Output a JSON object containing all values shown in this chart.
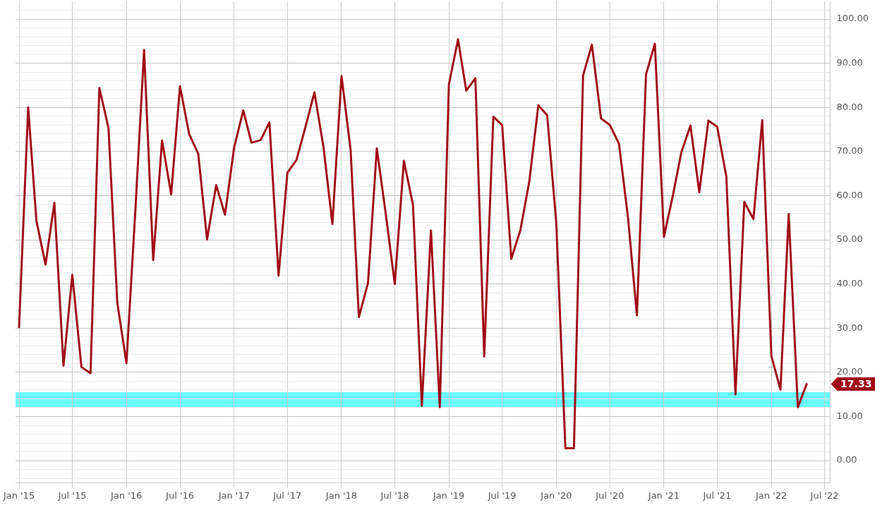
{
  "chart_data": {
    "type": "line",
    "x": [
      "2015-01",
      "2015-02",
      "2015-03",
      "2015-04",
      "2015-05",
      "2015-06",
      "2015-07",
      "2015-08",
      "2015-09",
      "2015-10",
      "2015-11",
      "2015-12",
      "2016-01",
      "2016-02",
      "2016-03",
      "2016-04",
      "2016-05",
      "2016-06",
      "2016-07",
      "2016-08",
      "2016-09",
      "2016-10",
      "2016-11",
      "2016-12",
      "2017-01",
      "2017-02",
      "2017-03",
      "2017-04",
      "2017-05",
      "2017-06",
      "2017-07",
      "2017-08",
      "2017-09",
      "2017-10",
      "2017-11",
      "2017-12",
      "2018-01",
      "2018-02",
      "2018-03",
      "2018-04",
      "2018-05",
      "2018-06",
      "2018-07",
      "2018-08",
      "2018-09",
      "2018-10",
      "2018-11",
      "2018-12",
      "2019-01",
      "2019-02",
      "2019-03",
      "2019-04",
      "2019-05",
      "2019-06",
      "2019-07",
      "2019-08",
      "2019-09",
      "2019-10",
      "2019-11",
      "2019-12",
      "2020-01",
      "2020-02",
      "2020-03",
      "2020-04",
      "2020-05",
      "2020-06",
      "2020-07",
      "2020-08",
      "2020-09",
      "2020-10",
      "2020-11",
      "2020-12",
      "2021-01",
      "2021-02",
      "2021-03",
      "2021-04",
      "2021-05",
      "2021-06",
      "2021-07",
      "2021-08",
      "2021-09",
      "2021-10",
      "2021-11",
      "2021-12",
      "2022-01",
      "2022-02",
      "2022-03",
      "2022-04",
      "2022-05"
    ],
    "series": [
      {
        "color": "#a00d18",
        "values": [
          30.2,
          80.0,
          54.3,
          44.4,
          58.4,
          21.5,
          42.1,
          21.2,
          19.8,
          84.4,
          75.3,
          35.7,
          22.1,
          57.5,
          93.0,
          45.4,
          72.5,
          60.3,
          84.8,
          74.0,
          69.5,
          50.1,
          62.4,
          55.7,
          70.9,
          79.3,
          72.0,
          72.6,
          76.6,
          41.9,
          65.2,
          68.1,
          75.7,
          83.4,
          70.9,
          53.6,
          87.1,
          70.3,
          32.5,
          40.2,
          70.7,
          55.6,
          40.0,
          67.9,
          57.9,
          12.4,
          52.1,
          12.1,
          85.2,
          95.4,
          83.8,
          86.6,
          23.6,
          77.9,
          76.0,
          45.7,
          52.2,
          63.1,
          80.5,
          78.2,
          53.8,
          2.8,
          2.8,
          87.2,
          94.2,
          77.5,
          76.0,
          71.8,
          54.9,
          32.9,
          87.5,
          94.4,
          50.7,
          60.3,
          69.8,
          75.9,
          60.8,
          77.0,
          75.6,
          64.3,
          15.0,
          58.6,
          54.7,
          77.1,
          23.7,
          16.1,
          55.9,
          12.1,
          17.33
        ]
      }
    ],
    "xlim": [
      "2014-12-20",
      "2022-07-20"
    ],
    "xticks": [
      {
        "value": "2015-01",
        "label": "Jan '15"
      },
      {
        "value": "2015-07",
        "label": "Jul '15"
      },
      {
        "value": "2016-01",
        "label": "Jan '16"
      },
      {
        "value": "2016-07",
        "label": "Jul '16"
      },
      {
        "value": "2017-01",
        "label": "Jan '17"
      },
      {
        "value": "2017-07",
        "label": "Jul '17"
      },
      {
        "value": "2018-01",
        "label": "Jan '18"
      },
      {
        "value": "2018-07",
        "label": "Jul '18"
      },
      {
        "value": "2019-01",
        "label": "Jan '19"
      },
      {
        "value": "2019-07",
        "label": "Jul '19"
      },
      {
        "value": "2020-01",
        "label": "Jan '20"
      },
      {
        "value": "2020-07",
        "label": "Jul '20"
      },
      {
        "value": "2021-01",
        "label": "Jan '21"
      },
      {
        "value": "2021-07",
        "label": "Jul '21"
      },
      {
        "value": "2022-01",
        "label": "Jan '22"
      },
      {
        "value": "2022-07",
        "label": "Jul '22"
      }
    ],
    "ylim": [
      -5,
      104
    ],
    "yticks": [
      {
        "value": -4,
        "label": null
      },
      {
        "value": -2,
        "label": null
      },
      {
        "value": 0,
        "label": "0.00"
      },
      {
        "value": 2,
        "label": null
      },
      {
        "value": 4,
        "label": null
      },
      {
        "value": 6,
        "label": null
      },
      {
        "value": 8,
        "label": null
      },
      {
        "value": 10,
        "label": "10.00"
      },
      {
        "value": 12,
        "label": null
      },
      {
        "value": 14,
        "label": null
      },
      {
        "value": 16,
        "label": null
      },
      {
        "value": 18,
        "label": null
      },
      {
        "value": 20,
        "label": "20.00"
      },
      {
        "value": 22,
        "label": null
      },
      {
        "value": 24,
        "label": null
      },
      {
        "value": 26,
        "label": null
      },
      {
        "value": 28,
        "label": null
      },
      {
        "value": 30,
        "label": "30.00"
      },
      {
        "value": 32,
        "label": null
      },
      {
        "value": 34,
        "label": null
      },
      {
        "value": 36,
        "label": null
      },
      {
        "value": 38,
        "label": null
      },
      {
        "value": 40,
        "label": "40.00"
      },
      {
        "value": 42,
        "label": null
      },
      {
        "value": 44,
        "label": null
      },
      {
        "value": 46,
        "label": null
      },
      {
        "value": 48,
        "label": null
      },
      {
        "value": 50,
        "label": "50.00"
      },
      {
        "value": 52,
        "label": null
      },
      {
        "value": 54,
        "label": null
      },
      {
        "value": 56,
        "label": null
      },
      {
        "value": 58,
        "label": null
      },
      {
        "value": 60,
        "label": "60.00"
      },
      {
        "value": 62,
        "label": null
      },
      {
        "value": 64,
        "label": null
      },
      {
        "value": 66,
        "label": null
      },
      {
        "value": 68,
        "label": null
      },
      {
        "value": 70,
        "label": "70.00"
      },
      {
        "value": 72,
        "label": null
      },
      {
        "value": 74,
        "label": null
      },
      {
        "value": 76,
        "label": null
      },
      {
        "value": 78,
        "label": null
      },
      {
        "value": 80,
        "label": "80.00"
      },
      {
        "value": 82,
        "label": null
      },
      {
        "value": 84,
        "label": null
      },
      {
        "value": 86,
        "label": null
      },
      {
        "value": 88,
        "label": null
      },
      {
        "value": 90,
        "label": "90.00"
      },
      {
        "value": 92,
        "label": null
      },
      {
        "value": 94,
        "label": null
      },
      {
        "value": 96,
        "label": null
      },
      {
        "value": 98,
        "label": null
      },
      {
        "value": 100,
        "label": "100.00"
      },
      {
        "value": 102,
        "label": null
      }
    ],
    "grid": true,
    "bands": [
      {
        "axis": "y",
        "from": 12,
        "to": 15.5,
        "color": "#6cfbfc"
      }
    ],
    "annotations": [
      "17.33"
    ],
    "marker": "none",
    "line_style": "solid"
  }
}
